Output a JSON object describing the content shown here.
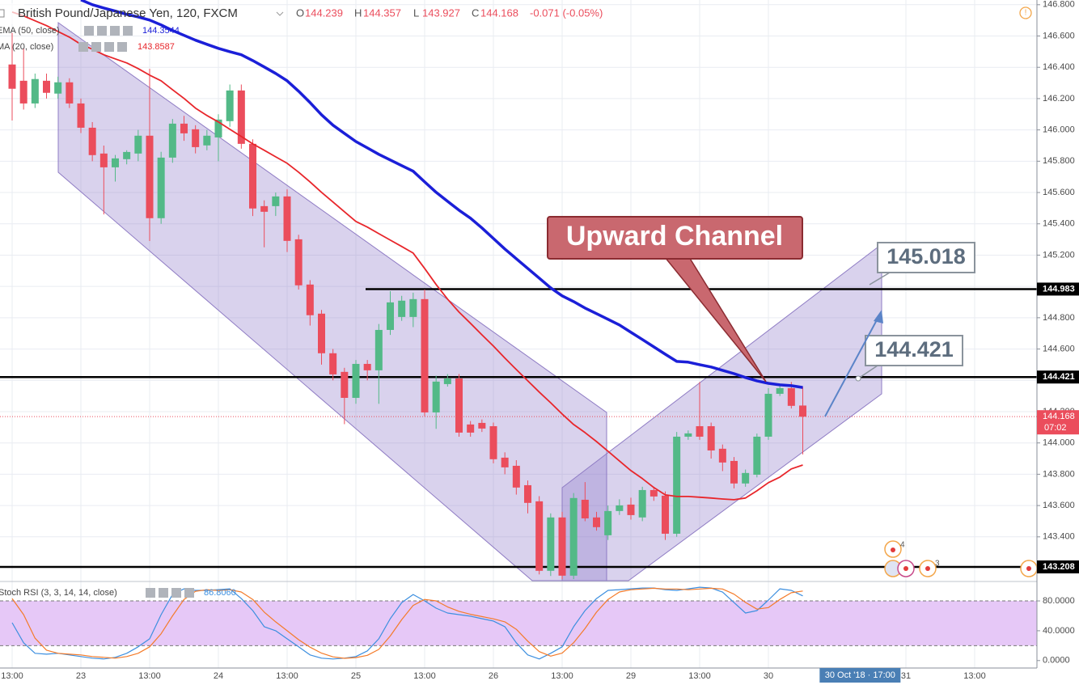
{
  "chart_data": [
    {
      "type": "candlestick",
      "title": "British Pound/Japanese Yen, 120, FXCM",
      "ohlc_labels": [
        "O",
        "H",
        "L",
        "C"
      ],
      "change": "-0.071 (-0.05%)",
      "categories": [
        "13:00",
        null,
        null,
        null,
        null,
        null,
        "23",
        null,
        null,
        null,
        null,
        null,
        "13:00",
        null,
        null,
        null,
        null,
        null,
        "24",
        null,
        null,
        null,
        null,
        null,
        "13:00",
        null,
        null,
        null,
        null,
        null,
        "25",
        null,
        null,
        null,
        null,
        null,
        "13:00",
        null,
        null,
        null,
        null,
        null,
        "26",
        null,
        null,
        null,
        null,
        null,
        "13:00",
        null,
        null,
        null,
        null,
        null,
        "29",
        null,
        null,
        null,
        null,
        null,
        "13:00",
        null,
        null,
        null,
        null,
        null,
        "30",
        null,
        null,
        null,
        null,
        null,
        null,
        null,
        null,
        null,
        null,
        null,
        "31",
        null,
        null,
        null,
        null,
        null,
        "13:00"
      ],
      "open": [
        146.418,
        146.314,
        146.169,
        146.314,
        146.232,
        146.304,
        146.169,
        146.014,
        145.849,
        145.761,
        145.813,
        145.849,
        145.963,
        145.436,
        145.823,
        146.04,
        146.004,
        145.901,
        145.952,
        146.056,
        146.252,
        145.911,
        145.513,
        145.513,
        145.575,
        145.301,
        145.012,
        144.826,
        144.573,
        144.454,
        144.288,
        144.505,
        144.464,
        144.722,
        144.805,
        144.805,
        144.919,
        144.195,
        144.376,
        144.412,
        144.118,
        144.128,
        144.107,
        143.906,
        143.854,
        143.73,
        143.627,
        143.183,
        143.524,
        143.152,
        143.637,
        143.524,
        143.41,
        143.565,
        143.606,
        143.524,
        143.699,
        143.663,
        143.42,
        144.04,
        144.107,
        144.107,
        143.963,
        143.885,
        143.741,
        143.797,
        144.04,
        144.314,
        144.35,
        144.239,
        null,
        null,
        null,
        null,
        null,
        null,
        null,
        null,
        null,
        null,
        null,
        null,
        null,
        null,
        null
      ],
      "high": [
        146.62,
        146.52,
        146.36,
        146.36,
        146.34,
        146.33,
        146.2,
        146.05,
        145.9,
        145.84,
        145.87,
        146,
        146.39,
        145.86,
        146.07,
        146.09,
        146.03,
        146,
        146.1,
        146.29,
        146.29,
        145.94,
        145.55,
        145.6,
        145.62,
        145.33,
        145.04,
        144.85,
        144.6,
        144.48,
        144.53,
        144.53,
        144.76,
        144.97,
        144.94,
        144.96,
        144.98,
        144.43,
        144.44,
        144.44,
        144.14,
        144.15,
        144.13,
        143.94,
        143.89,
        143.76,
        143.66,
        143.55,
        143.56,
        143.68,
        143.75,
        143.56,
        143.6,
        143.64,
        143.65,
        143.72,
        143.72,
        143.69,
        144.07,
        144.08,
        144.39,
        144.13,
        143.99,
        143.91,
        143.83,
        144.06,
        144.35,
        144.37,
        144.39,
        144.357,
        null,
        null,
        null,
        null,
        null,
        null,
        null,
        null,
        null,
        null,
        null,
        null,
        null,
        null,
        null
      ],
      "low": [
        146.06,
        146.13,
        146.14,
        146.2,
        146.2,
        146.14,
        145.98,
        145.8,
        145.46,
        145.67,
        145.78,
        145.8,
        145.29,
        145.4,
        145.79,
        145.93,
        145.85,
        145.87,
        145.8,
        146.02,
        145.88,
        145.45,
        145.25,
        145.45,
        145.22,
        144.98,
        144.75,
        144.5,
        144.4,
        144.12,
        144.25,
        144.4,
        144.25,
        144.69,
        144.78,
        144.74,
        144.17,
        144.09,
        144.36,
        144.04,
        144.04,
        144.07,
        143.87,
        143.8,
        143.67,
        143.55,
        143.16,
        143.15,
        143.13,
        143.13,
        143.5,
        143.44,
        143.38,
        143.54,
        143.51,
        143.5,
        143.63,
        143.38,
        143.4,
        144.02,
        144.02,
        143.9,
        143.82,
        143.71,
        143.72,
        143.78,
        144.02,
        144.3,
        144.22,
        143.927,
        null,
        null,
        null,
        null,
        null,
        null,
        null,
        null,
        null,
        null,
        null,
        null,
        null,
        null,
        null
      ],
      "close": [
        146.263,
        146.169,
        146.325,
        146.237,
        146.304,
        146.169,
        146.014,
        145.839,
        145.761,
        145.818,
        145.859,
        145.963,
        145.436,
        145.823,
        146.04,
        145.978,
        145.89,
        145.963,
        146.066,
        146.252,
        145.911,
        145.498,
        145.477,
        145.575,
        145.291,
        145.007,
        144.816,
        144.573,
        144.438,
        144.288,
        144.505,
        144.464,
        144.722,
        144.898,
        144.909,
        144.919,
        144.195,
        144.392,
        144.412,
        144.066,
        144.066,
        144.092,
        143.896,
        143.844,
        143.715,
        143.617,
        143.183,
        143.524,
        143.152,
        143.648,
        143.518,
        143.462,
        143.565,
        143.601,
        143.539,
        143.699,
        143.658,
        143.42,
        144.04,
        144.061,
        144.04,
        143.952,
        143.875,
        143.741,
        143.808,
        144.04,
        144.314,
        144.35,
        144.237,
        144.168,
        null,
        null,
        null,
        null,
        null,
        null,
        null,
        null,
        null,
        null,
        null,
        null,
        null,
        null,
        null
      ],
      "up_color": "#53b987",
      "down_color": "#eb4d5c",
      "series": [
        {
          "name": "EMA (50, close)",
          "color": "#1b1fd8",
          "values": [
            null,
            null,
            null,
            null,
            null,
            null,
            146.831,
            146.8,
            146.779,
            146.759,
            146.738,
            146.722,
            146.702,
            146.671,
            146.635,
            146.604,
            146.573,
            146.547,
            146.521,
            146.5,
            146.48,
            146.443,
            146.402,
            146.361,
            146.314,
            146.247,
            146.175,
            146.097,
            146.03,
            145.978,
            145.926,
            145.885,
            145.844,
            145.808,
            145.772,
            145.736,
            145.668,
            145.601,
            145.544,
            145.487,
            145.436,
            145.374,
            145.306,
            145.239,
            145.177,
            145.115,
            145.053,
            144.991,
            144.94,
            144.903,
            144.862,
            144.826,
            144.79,
            144.754,
            144.707,
            144.661,
            144.614,
            144.567,
            144.521,
            144.516,
            144.5,
            144.485,
            144.464,
            144.443,
            144.418,
            144.397,
            144.381,
            144.371,
            144.366,
            144.3544,
            null,
            null,
            null,
            null,
            null,
            null,
            null,
            null,
            null,
            null,
            null,
            null,
            null,
            null,
            null
          ]
        },
        {
          "name": "MA (20, close)",
          "color": "#e8262b",
          "values": [
            146.753,
            146.728,
            146.697,
            146.666,
            146.629,
            146.593,
            146.547,
            146.516,
            146.48,
            146.454,
            146.428,
            146.392,
            146.35,
            146.314,
            146.257,
            146.201,
            146.139,
            146.092,
            146.051,
            146.004,
            145.958,
            145.911,
            145.87,
            145.828,
            145.787,
            145.73,
            145.668,
            145.601,
            145.539,
            145.477,
            145.415,
            145.379,
            145.337,
            145.296,
            145.255,
            145.213,
            145.115,
            145.012,
            144.919,
            144.836,
            144.764,
            144.691,
            144.619,
            144.542,
            144.469,
            144.397,
            144.325,
            144.257,
            144.185,
            144.118,
            144.066,
            144.009,
            143.947,
            143.885,
            143.823,
            143.772,
            143.715,
            143.668,
            143.658,
            143.658,
            143.653,
            143.648,
            143.642,
            143.637,
            143.648,
            143.694,
            143.746,
            143.782,
            143.834,
            143.8587,
            null,
            null,
            null,
            null,
            null,
            null,
            null,
            null,
            null,
            null,
            null,
            null,
            null,
            null,
            null
          ]
        }
      ],
      "levels": [
        144.983,
        144.421,
        143.208
      ],
      "countdown": "07:02",
      "crosshair_label": "30 Oct '18 · 17:00",
      "annotations": [
        "Upward Channel",
        "145.018",
        "144.421"
      ],
      "events": [
        "4",
        "3"
      ],
      "ylim": [
        143.12,
        146.83
      ],
      "yticks": [
        {
          "value": 146.8,
          "label": "146.800"
        },
        {
          "value": 146.6,
          "label": "146.600"
        },
        {
          "value": 146.4,
          "label": "146.400"
        },
        {
          "value": 146.2,
          "label": "146.200"
        },
        {
          "value": 146,
          "label": "146.000"
        },
        {
          "value": 145.8,
          "label": "145.800"
        },
        {
          "value": 145.6,
          "label": "145.600"
        },
        {
          "value": 145.4,
          "label": "145.400"
        },
        {
          "value": 145.2,
          "label": "145.200"
        },
        {
          "value": 145,
          "label": "145.000"
        },
        {
          "value": 144.8,
          "label": "144.800"
        },
        {
          "value": 144.6,
          "label": "144.600"
        },
        {
          "value": 144.4,
          "label": "144.400"
        },
        {
          "value": 144.2,
          "label": "144.200"
        },
        {
          "value": 144,
          "label": "144.000"
        },
        {
          "value": 143.8,
          "label": "143.800"
        },
        {
          "value": 143.6,
          "label": "143.600"
        },
        {
          "value": 143.4,
          "label": "143.400"
        }
      ],
      "grid": true
    },
    {
      "type": "line",
      "title": "Stoch RSI (3, 3, 14, 14, close)",
      "series": [
        {
          "color": "#3d8fdf",
          "values": [
            50.8,
            23.8,
            9.7,
            8.6,
            9.7,
            7.6,
            5.4,
            3.2,
            2.2,
            4.3,
            9.7,
            18.4,
            29.2,
            61.6,
            88.6,
            96.2,
            94.1,
            94.1,
            95.1,
            96.2,
            83.2,
            67,
            45.4,
            40,
            29.2,
            18.4,
            7.6,
            3.2,
            2.2,
            3.2,
            5.4,
            13,
            29.2,
            56.2,
            77.8,
            88.6,
            80,
            70.3,
            63.8,
            61.6,
            59.5,
            56.2,
            53,
            45.4,
            23.8,
            7.6,
            2.2,
            9.7,
            18.4,
            45.4,
            67,
            83.2,
            94.1,
            95.1,
            96.2,
            97.3,
            97.3,
            95.1,
            94.1,
            96.2,
            98.4,
            97.3,
            91.9,
            77.8,
            63.8,
            67,
            81.1,
            96.2,
            94.1,
            86.806,
            null,
            null,
            null,
            null,
            null,
            null,
            null,
            null,
            null,
            null,
            null,
            null,
            null,
            null,
            null
          ],
          "value_labels": [
            null,
            null,
            null,
            null,
            null,
            null,
            null,
            null,
            null,
            null,
            null,
            null,
            null,
            null,
            null,
            null,
            null,
            null,
            null,
            null,
            null,
            null,
            null,
            null,
            null,
            null,
            null,
            null,
            null,
            null,
            null,
            null,
            null,
            null,
            null,
            null,
            null,
            null,
            null,
            null,
            null,
            null,
            null,
            null,
            null,
            null,
            null,
            null,
            null,
            null,
            null,
            null,
            null,
            null,
            null,
            null,
            null,
            null,
            null,
            null,
            null,
            null,
            null,
            null,
            null,
            null,
            null,
            null,
            null,
            "86.8060",
            null,
            null,
            null,
            null,
            null,
            null,
            null,
            null,
            null,
            null,
            null,
            null,
            null,
            null,
            null
          ]
        },
        {
          "color": "#f47b2a",
          "values": [
            83.2,
            61.6,
            30,
            14,
            9.7,
            8.6,
            7.6,
            5.4,
            4.3,
            3.2,
            5.4,
            9.7,
            18.4,
            36,
            60,
            82,
            93,
            95,
            94,
            95,
            92,
            82,
            65,
            52,
            40,
            28,
            18,
            10,
            5,
            3,
            4,
            7,
            15,
            33,
            55,
            74,
            82,
            80,
            72,
            66,
            62,
            59,
            56,
            52,
            42,
            26,
            12,
            6,
            10,
            24,
            43,
            65,
            82,
            92,
            95,
            96,
            97,
            96,
            96,
            95,
            96,
            97,
            96,
            89,
            78,
            69,
            71,
            82,
            91,
            93.2993,
            null,
            null,
            null,
            null,
            null,
            null,
            null,
            null,
            null,
            null,
            null,
            null,
            null,
            null,
            null
          ]
        }
      ],
      "band": [
        20,
        80
      ],
      "band_color": "#e6c8f7",
      "ylim": [
        -10,
        105
      ],
      "yticks": [
        {
          "value": 80,
          "label": "80.0000"
        },
        {
          "value": 40,
          "label": "40.0000"
        },
        {
          "value": 0,
          "label": "0.0000"
        }
      ]
    }
  ]
}
